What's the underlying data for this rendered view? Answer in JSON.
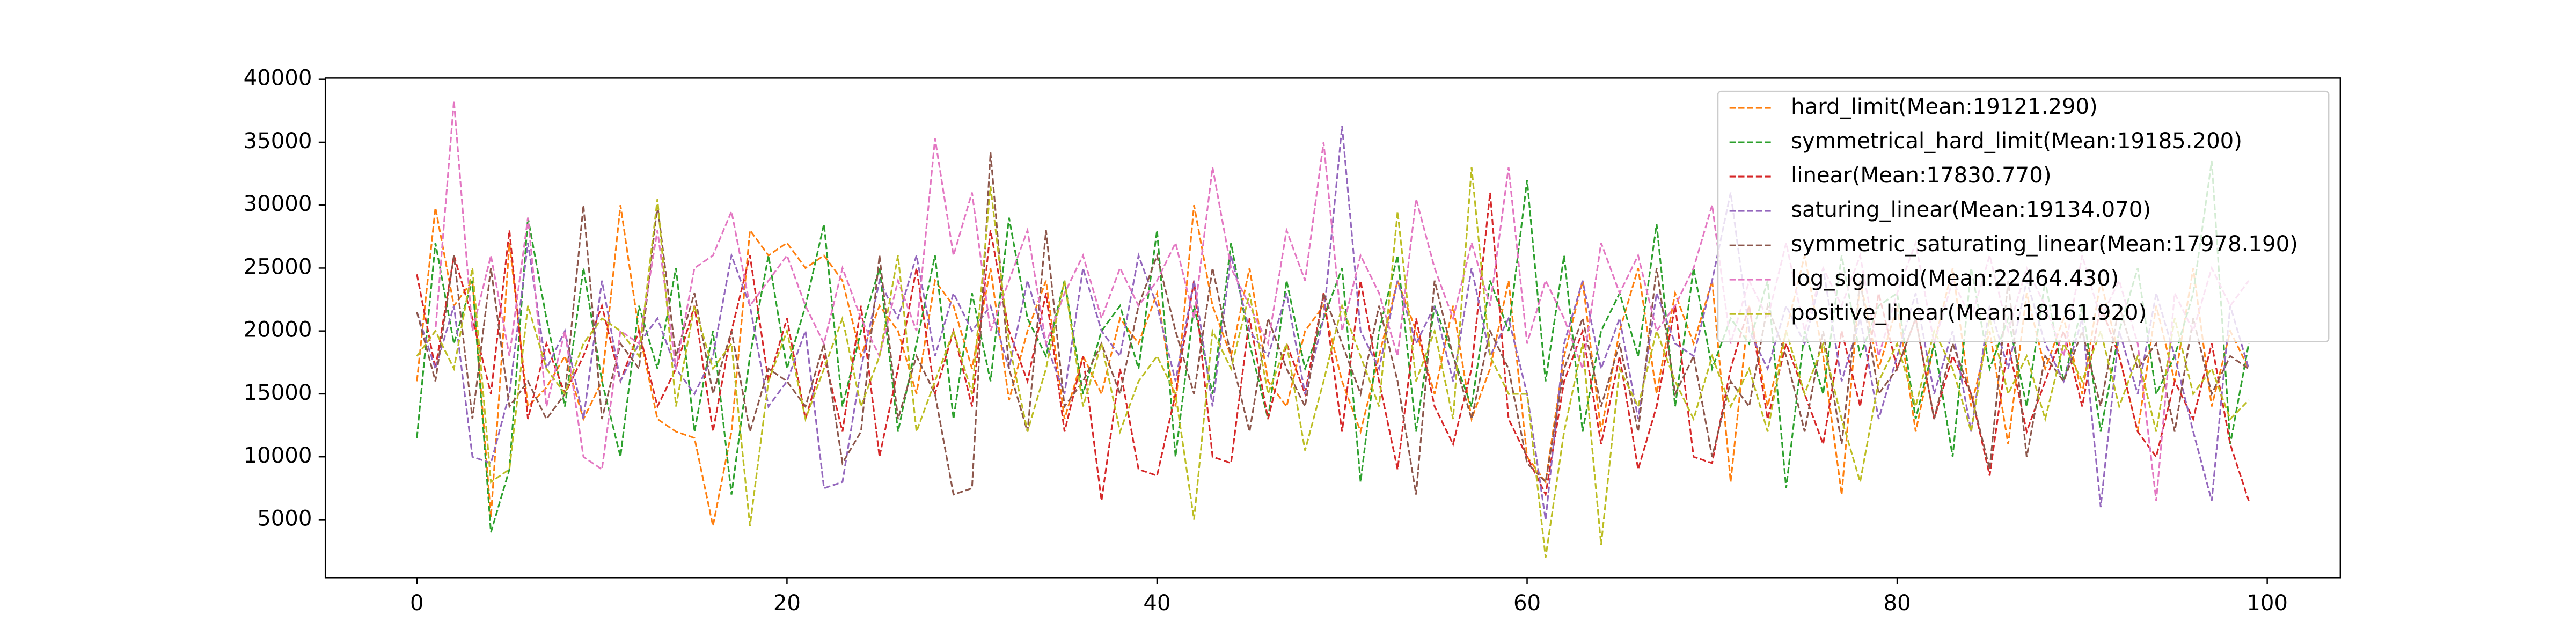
{
  "chart_data": {
    "type": "line",
    "legend": "upper right",
    "grid": false,
    "xlim": [
      -4.95,
      103.95
    ],
    "ylim": [
      400,
      40100
    ],
    "xticks": [
      0,
      20,
      40,
      60,
      80,
      100
    ],
    "yticks": [
      5000,
      10000,
      15000,
      20000,
      25000,
      30000,
      35000,
      40000
    ],
    "x": [
      0,
      1,
      2,
      3,
      4,
      5,
      6,
      7,
      8,
      9,
      10,
      11,
      12,
      13,
      14,
      15,
      16,
      17,
      18,
      19,
      20,
      21,
      22,
      23,
      24,
      25,
      26,
      27,
      28,
      29,
      30,
      31,
      32,
      33,
      34,
      35,
      36,
      37,
      38,
      39,
      40,
      41,
      42,
      43,
      44,
      45,
      46,
      47,
      48,
      49,
      50,
      51,
      52,
      53,
      54,
      55,
      56,
      57,
      58,
      59,
      60,
      61,
      62,
      63,
      64,
      65,
      66,
      67,
      68,
      69,
      70,
      71,
      72,
      73,
      74,
      75,
      76,
      77,
      78,
      79,
      80,
      81,
      82,
      83,
      84,
      85,
      86,
      87,
      88,
      89,
      90,
      91,
      92,
      93,
      94,
      95,
      96,
      97,
      98,
      99
    ],
    "series": [
      {
        "name": "hard_limit(Mean:19121.290)",
        "color": "#ff7f0e",
        "values": [
          16000,
          29800,
          22000,
          24000,
          5200,
          27000,
          14000,
          15500,
          18000,
          13000,
          16000,
          30000,
          20000,
          13000,
          12000,
          11500,
          4500,
          12000,
          28000,
          26000,
          27000,
          25000,
          26000,
          24000,
          18000,
          22000,
          20000,
          15000,
          24000,
          22000,
          17000,
          25000,
          14500,
          20000,
          24000,
          13000,
          18000,
          15000,
          21000,
          19000,
          23000,
          14000,
          30000,
          22000,
          18000,
          25000,
          16000,
          14000,
          20000,
          22000,
          16000,
          12000,
          18000,
          24000,
          20000,
          15000,
          22000,
          13000,
          17000,
          24000,
          10000,
          8000,
          18000,
          24000,
          12000,
          20000,
          25000,
          15000,
          23000,
          19000,
          24000,
          8000,
          22000,
          14000,
          20000,
          26000,
          18000,
          7000,
          24000,
          17000,
          22000,
          12000,
          19000,
          25000,
          14000,
          20000,
          11000,
          23000,
          17000,
          21000,
          15000,
          24000,
          18000,
          12000,
          22000,
          16000,
          25000,
          14000,
          20000,
          17000
        ]
      },
      {
        "name": "symmetrical_hard_limit(Mean:19185.200)",
        "color": "#2ca02c",
        "values": [
          11500,
          27000,
          19000,
          24000,
          4000,
          9000,
          29000,
          21000,
          14000,
          25000,
          16000,
          10000,
          22000,
          17000,
          25000,
          12000,
          20000,
          7000,
          18000,
          26000,
          17000,
          22000,
          28500,
          14000,
          20000,
          25000,
          12000,
          19000,
          26000,
          13000,
          23000,
          16000,
          29000,
          21000,
          18000,
          24000,
          15000,
          20000,
          22000,
          17000,
          28000,
          10000,
          22000,
          15000,
          27000,
          19000,
          13000,
          24000,
          17000,
          21000,
          25000,
          8000,
          20000,
          26000,
          12000,
          22000,
          18000,
          14000,
          24000,
          20000,
          32000,
          16000,
          26000,
          12000,
          20000,
          23000,
          18000,
          28500,
          14000,
          25000,
          17000,
          21000,
          19000,
          24000,
          7500,
          20000,
          15000,
          26000,
          18000,
          22000,
          23000,
          13000,
          19000,
          10000,
          25000,
          17000,
          21000,
          14000,
          24000,
          16000,
          22000,
          12000,
          20000,
          25000,
          15000,
          18000,
          23000,
          33500,
          11000,
          19000
        ]
      },
      {
        "name": "linear(Mean:17830.770)",
        "color": "#d62728",
        "values": [
          24500,
          17000,
          26000,
          21000,
          15000,
          28000,
          13000,
          19000,
          15000,
          18000,
          22000,
          16000,
          20000,
          14000,
          17000,
          22000,
          12000,
          20000,
          26000,
          16000,
          21000,
          13000,
          18000,
          12000,
          22000,
          10000,
          17000,
          25000,
          15000,
          20000,
          14000,
          28000,
          20000,
          16000,
          23000,
          12000,
          18000,
          6500,
          17000,
          9000,
          8500,
          15000,
          24000,
          10000,
          9500,
          21000,
          13000,
          19000,
          15000,
          23000,
          12000,
          24000,
          16000,
          9000,
          21000,
          14000,
          11000,
          17000,
          31000,
          13000,
          10000,
          7000,
          16000,
          20000,
          11000,
          18000,
          9000,
          14000,
          22000,
          10000,
          9500,
          17000,
          22000,
          13000,
          19000,
          15000,
          11000,
          20000,
          14000,
          23000,
          17000,
          21000,
          13000,
          18000,
          15000,
          8500,
          19000,
          12000,
          16000,
          20000,
          14000,
          22000,
          18000,
          12000,
          10000,
          16000,
          13000,
          19000,
          11000,
          6500
        ]
      },
      {
        "name": "saturing_linear(Mean:19134.070)",
        "color": "#9467bd",
        "values": [
          21500,
          17000,
          22000,
          10000,
          9500,
          15000,
          27000,
          17000,
          20000,
          13000,
          24000,
          16000,
          19000,
          21000,
          17000,
          15000,
          18000,
          26000,
          22000,
          14000,
          16000,
          20000,
          7500,
          8000,
          17000,
          24000,
          21000,
          26000,
          18000,
          23000,
          20000,
          22000,
          17000,
          24000,
          19000,
          15000,
          25000,
          20000,
          18000,
          26000,
          22000,
          16000,
          24000,
          14000,
          26000,
          20000,
          18000,
          23000,
          15000,
          21000,
          36300,
          20000,
          17000,
          24000,
          19000,
          22000,
          16000,
          25000,
          18000,
          21000,
          15000,
          5000,
          19000,
          24000,
          17000,
          21000,
          13000,
          23000,
          19000,
          18000,
          24000,
          31000,
          20000,
          17000,
          22000,
          19000,
          25000,
          16000,
          21000,
          13000,
          18000,
          23000,
          15000,
          20000,
          12000,
          22000,
          17000,
          24000,
          19000,
          16000,
          21000,
          6000,
          20000,
          15000,
          23000,
          18000,
          12000,
          6500,
          22000,
          17000
        ]
      },
      {
        "name": "symmetric_saturating_linear(Mean:17978.190)",
        "color": "#8c564b",
        "values": [
          21500,
          16000,
          26000,
          13000,
          25000,
          14000,
          16000,
          13000,
          15000,
          30000,
          13000,
          19000,
          17000,
          30000,
          18000,
          23000,
          15000,
          20000,
          12000,
          17000,
          16000,
          14000,
          19000,
          9500,
          12000,
          26000,
          13000,
          18000,
          15000,
          7000,
          7500,
          34200,
          17000,
          12000,
          28000,
          14000,
          16000,
          19000,
          15000,
          22000,
          26000,
          20000,
          15000,
          25000,
          18000,
          12000,
          21000,
          17000,
          14000,
          23000,
          19000,
          15000,
          22000,
          16000,
          7000,
          24000,
          18000,
          13000,
          20000,
          17000,
          9500,
          8000,
          17000,
          21000,
          14000,
          19000,
          12000,
          25000,
          15000,
          18000,
          10000,
          16000,
          14000,
          22000,
          18000,
          12000,
          20000,
          11000,
          24000,
          15000,
          17000,
          21000,
          13000,
          19000,
          15000,
          9000,
          24000,
          10000,
          18000,
          16000,
          20000,
          14000,
          22000,
          17000,
          19000,
          12000,
          21000,
          15000,
          18000,
          17000
        ]
      },
      {
        "name": "log_sigmoid(Mean:22464.430)",
        "color": "#e377c2",
        "values": [
          18000,
          20000,
          38300,
          20000,
          26000,
          18000,
          29000,
          14000,
          20000,
          10000,
          9000,
          20000,
          19000,
          28000,
          17000,
          25000,
          26000,
          29500,
          22000,
          24000,
          26000,
          22000,
          19000,
          25000,
          21000,
          18000,
          24000,
          20000,
          35300,
          26000,
          31000,
          20000,
          24000,
          28000,
          19000,
          23000,
          26000,
          21000,
          25000,
          22000,
          24000,
          27000,
          21000,
          33000,
          25000,
          22000,
          19000,
          28000,
          24000,
          35000,
          20000,
          26000,
          23000,
          18000,
          30500,
          25000,
          21000,
          27000,
          22000,
          33000,
          19000,
          24000,
          21000,
          17000,
          27000,
          23000,
          26000,
          20000,
          22000,
          25000,
          30000,
          19000,
          24000,
          21000,
          27000,
          20000,
          25000,
          22000,
          26000,
          18000,
          23000,
          27000,
          19000,
          24000,
          21000,
          26000,
          20000,
          25000,
          22000,
          18000,
          26000,
          21000,
          24000,
          19000,
          6500,
          23000,
          20000,
          25000,
          22000,
          24000
        ]
      },
      {
        "name": "positive_linear(Mean:18161.920)",
        "color": "#bcbd22",
        "values": [
          18000,
          20000,
          17000,
          25000,
          8000,
          9000,
          22000,
          17000,
          15000,
          19000,
          21000,
          20000,
          18000,
          30500,
          14000,
          22000,
          17000,
          19000,
          4500,
          16000,
          20000,
          13000,
          17000,
          21000,
          14000,
          18000,
          26000,
          12000,
          16000,
          20000,
          15000,
          31500,
          19000,
          12000,
          17000,
          24000,
          14000,
          19000,
          12000,
          16000,
          18000,
          15000,
          5000,
          20000,
          17000,
          23000,
          15000,
          19000,
          10500,
          16000,
          22000,
          18000,
          14000,
          29500,
          16000,
          20000,
          13000,
          33000,
          18000,
          15000,
          15000,
          2000,
          12000,
          19000,
          3000,
          17000,
          14000,
          20000,
          16000,
          13000,
          18000,
          14000,
          17000,
          12000,
          20000,
          15000,
          19000,
          13000,
          8000,
          16000,
          19000,
          14000,
          20000,
          17000,
          12000,
          21000,
          15000,
          18000,
          13000,
          19000,
          16000,
          20000,
          14000,
          18000,
          12000,
          21000,
          15000,
          17000,
          13000,
          14500
        ]
      }
    ]
  }
}
